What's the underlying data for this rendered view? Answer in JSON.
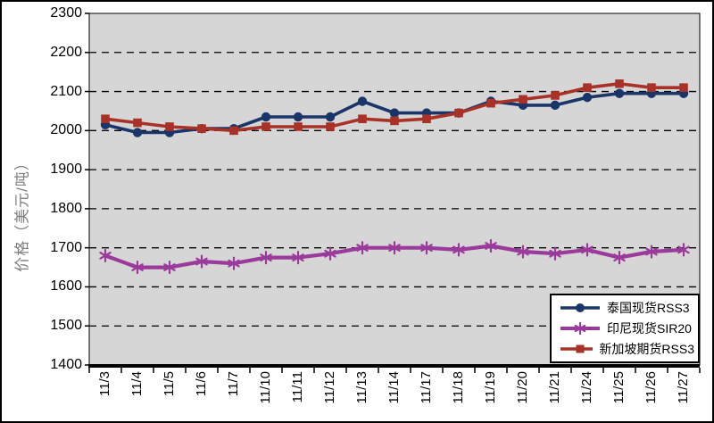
{
  "chart_data": {
    "type": "line",
    "title": "",
    "ylabel": "价格（美元/吨）",
    "xlabel": "",
    "ylim": [
      1400,
      2300
    ],
    "ytick_step": 100,
    "grid": "horizontal-dashed",
    "plot_background": "#d6d6d6",
    "legend_position": "bottom-right-inside",
    "categories": [
      "11/3",
      "11/4",
      "11/5",
      "11/6",
      "11/7",
      "11/10",
      "11/11",
      "11/12",
      "11/13",
      "11/14",
      "11/17",
      "11/18",
      "11/19",
      "11/20",
      "11/21",
      "11/24",
      "11/25",
      "11/26",
      "11/27"
    ],
    "series": [
      {
        "name": "泰国现货RSS3",
        "marker": "circle",
        "color": "#1a3668",
        "values": [
          2015,
          1995,
          1995,
          2005,
          2005,
          2035,
          2035,
          2035,
          2075,
          2045,
          2045,
          2045,
          2075,
          2065,
          2065,
          2085,
          2095,
          2095,
          2095
        ]
      },
      {
        "name": "印尼现货SIR20",
        "marker": "asterisk",
        "color": "#9a3a9a",
        "values": [
          1680,
          1650,
          1650,
          1665,
          1660,
          1675,
          1675,
          1685,
          1700,
          1700,
          1700,
          1695,
          1705,
          1690,
          1685,
          1695,
          1675,
          1690,
          1695
        ]
      },
      {
        "name": "新加坡期货RSS3",
        "marker": "square",
        "color": "#a93228",
        "values": [
          2030,
          2020,
          2010,
          2005,
          2000,
          2010,
          2010,
          2010,
          2030,
          2025,
          2030,
          2045,
          2070,
          2080,
          2090,
          2110,
          2120,
          2110,
          2110
        ]
      }
    ]
  },
  "colors": {
    "axis_title": "#7f7f7f",
    "tick_text": "#000000",
    "gridline": "#000000",
    "plot_border": "#000000",
    "frame_border": "#000000"
  }
}
